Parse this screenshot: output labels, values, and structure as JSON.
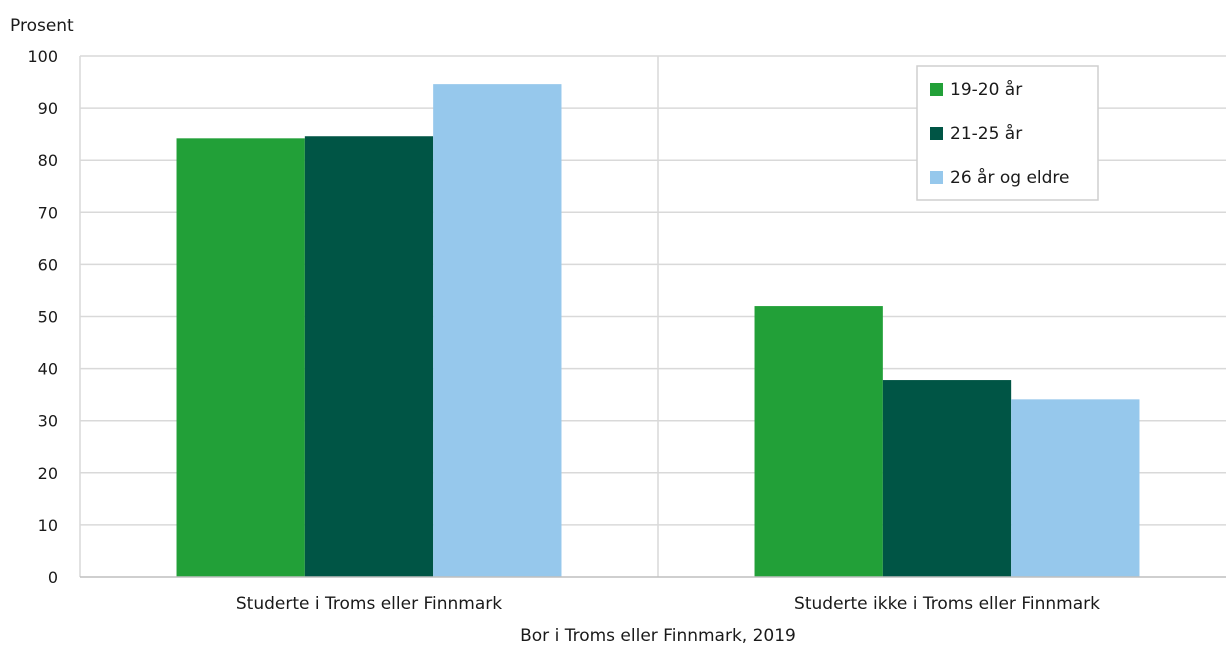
{
  "chart_data": {
    "type": "bar",
    "ylabel": "Prosent",
    "xlabel": "Bor i Troms eller Finnmark, 2019",
    "categories": [
      "Studerte i Troms eller Finnmark",
      "Studerte ikke i Troms eller Finnmark"
    ],
    "series": [
      {
        "name": "19-20 år",
        "values": [
          84.2,
          52.0
        ],
        "color": "#22a038"
      },
      {
        "name": "21-25 år",
        "values": [
          84.6,
          37.8
        ],
        "color": "#005545"
      },
      {
        "name": "26 år og eldre",
        "values": [
          94.6,
          34.1
        ],
        "color": "#96c8ec"
      }
    ],
    "ylim": [
      0,
      100
    ],
    "yticks": [
      0,
      10,
      20,
      30,
      40,
      50,
      60,
      70,
      80,
      90,
      100
    ],
    "grid": true,
    "legend_position": "top-right"
  }
}
